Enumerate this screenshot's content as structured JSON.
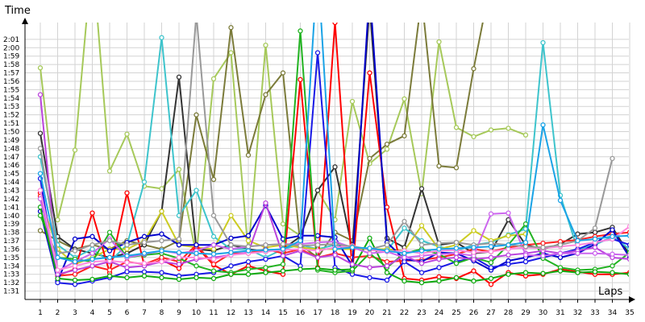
{
  "chart_data": {
    "type": "line",
    "xlabel": "Laps",
    "ylabel": "Time",
    "x": [
      1,
      2,
      3,
      4,
      5,
      6,
      7,
      8,
      9,
      10,
      11,
      12,
      13,
      14,
      15,
      16,
      17,
      18,
      19,
      20,
      21,
      22,
      23,
      24,
      25,
      26,
      27,
      28,
      29,
      30,
      31,
      32,
      33,
      34,
      35
    ],
    "xlim": [
      1,
      35
    ],
    "ylim": [
      90,
      123
    ],
    "y_tick_values": [
      91,
      92,
      93,
      94,
      95,
      96,
      97,
      98,
      99,
      100,
      101,
      102,
      103,
      104,
      105,
      106,
      107,
      108,
      109,
      110,
      111,
      112,
      113,
      114,
      115,
      116,
      117,
      118,
      119,
      120,
      121
    ],
    "y_tick_labels": [
      "1:31",
      "1:32",
      "1:33",
      "1:34",
      "1:35",
      "1:36",
      "1:37",
      "1:38",
      "1:39",
      "1:40",
      "1:41",
      "1:42",
      "1:43",
      "1:44",
      "1:45",
      "1:46",
      "1:47",
      "1:48",
      "1:49",
      "1:50",
      "1:51",
      "1:52",
      "1:53",
      "1:54",
      "1:55",
      "1:56",
      "1:57",
      "1:58",
      "1:59",
      "2:00",
      "2:01"
    ],
    "x_tick_labels": [
      "1",
      "2",
      "3",
      "4",
      "5",
      "6",
      "7",
      "8",
      "9",
      "10",
      "11",
      "12",
      "13",
      "14",
      "15",
      "16",
      "17",
      "18",
      "19",
      "20",
      "21",
      "22",
      "23",
      "24",
      "25",
      "26",
      "27",
      "28",
      "29",
      "30",
      "31",
      "32",
      "33",
      "34",
      "35"
    ],
    "grid": true,
    "legend": "none",
    "series": [
      {
        "color": "#a6c95a",
        "values": [
          117.6,
          99.5,
          107.8,
          131,
          105.3,
          109.7,
          103.5,
          103.2,
          105.5,
          95.3,
          116.3,
          119.4,
          95.6,
          120.3,
          99,
          97.6,
          103,
          99.5,
          113.6,
          106.2,
          107.9,
          113.9,
          102.6,
          120.7,
          110.5,
          109.4,
          110.2,
          110.4,
          109.6,
          null,
          null,
          null,
          null,
          null,
          null
        ]
      },
      {
        "color": "#7b7b3a",
        "values": [
          98.2,
          97,
          96,
          96.5,
          96,
          97,
          96.5,
          96,
          97,
          112,
          104.3,
          122.4,
          107.2,
          114.4,
          117,
          96.5,
          95,
          98,
          97,
          106.8,
          108.5,
          109.5,
          126,
          105.9,
          105.7,
          117.5,
          128,
          null,
          null,
          null,
          null,
          null,
          null,
          null,
          null
        ]
      },
      {
        "color": "#333333",
        "values": [
          109.8,
          97.5,
          96,
          95.5,
          95,
          95.5,
          96.5,
          100.5,
          116.5,
          96,
          95.8,
          96.5,
          96,
          95.7,
          96,
          97.5,
          103,
          105.8,
          96,
          125,
          97.3,
          96.2,
          103.2,
          96.5,
          96.8,
          95.5,
          95.7,
          99.5,
          96.5,
          96,
          96.6,
          97.8,
          98,
          98.6,
          95.3
        ]
      },
      {
        "color": "#3ec4cc",
        "values": [
          107,
          96.5,
          95,
          96,
          94.5,
          96.5,
          104,
          121.2,
          100,
          103,
          97.5,
          96,
          96,
          95,
          96,
          96.5,
          96,
          96.5,
          96,
          96,
          95.8,
          98.5,
          97,
          96.3,
          95.8,
          96.5,
          96.8,
          97.7,
          98.4,
          120.6,
          102.4,
          95.9,
          96.5,
          97.5,
          96
        ]
      },
      {
        "color": "#cccc22",
        "values": [
          102,
          96,
          94.2,
          95,
          96,
          96,
          97,
          100.5,
          96.5,
          96.2,
          96,
          100,
          97,
          96.2,
          96.5,
          96.2,
          96,
          96,
          96,
          96,
          96,
          95.8,
          98.8,
          96,
          96.5,
          98.2,
          97,
          97.6,
          97.8,
          null,
          null,
          null,
          null,
          null,
          null
        ]
      },
      {
        "color": "#ff0000",
        "values": [
          102.7,
          92.9,
          93.6,
          100.3,
          93.2,
          102.7,
          94,
          94.7,
          93.7,
          96.3,
          94.1,
          93,
          94,
          93.4,
          93,
          116.2,
          93.8,
          123,
          93.3,
          117,
          101,
          92.5,
          92.3,
          92.7,
          92.5,
          93.4,
          91.8,
          93.2,
          92.8,
          93,
          93.6,
          93.3,
          93,
          93,
          93.2
        ]
      },
      {
        "color": "#ff2222",
        "values": [
          102.3,
          92.8,
          93,
          94,
          93.5,
          94.5,
          94.2,
          95,
          94.5,
          96.5,
          94.2,
          95.5,
          95.5,
          96,
          95.5,
          96,
          95,
          95.5,
          95,
          95.2,
          94.5,
          94.6,
          94.7,
          95,
          95.4,
          96,
          95.7,
          96.2,
          96.5,
          96.7,
          96.9,
          97.1,
          97.5,
          97.8,
          98
        ]
      },
      {
        "color": "#0000cc",
        "values": [
          100.5,
          92.2,
          97.2,
          97.5,
          95.8,
          96.8,
          97.5,
          97.8,
          96.5,
          96.5,
          96.5,
          97.3,
          97.6,
          101.2,
          97.2,
          97.6,
          97.6,
          97.4,
          94,
          127,
          96.8,
          94.8,
          94.5,
          95.6,
          95.5,
          94.6,
          93.5,
          94.6,
          95,
          95.5,
          95,
          95.5,
          96.6,
          98.3,
          95
        ]
      },
      {
        "color": "#1a1ae6",
        "values": [
          104.4,
          92,
          91.8,
          92.2,
          92.6,
          93.3,
          93.3,
          93.2,
          92.8,
          93,
          93.2,
          94,
          94.5,
          94.8,
          95.2,
          94,
          119.4,
          93.8,
          93,
          92.6,
          92.3,
          94.5,
          93.2,
          93.8,
          94.5,
          95,
          93.8,
          94.2,
          94.5,
          95,
          95.5,
          96,
          96.8,
          97.2,
          96.5
        ]
      },
      {
        "color": "#22b322",
        "values": [
          100,
          95,
          94.8,
          94.5,
          98,
          95,
          95.3,
          95.5,
          94.9,
          94,
          93.4,
          93.2,
          93.6,
          93.8,
          94.2,
          122,
          93.5,
          93.2,
          93.4,
          95.5,
          93.8,
          95.5,
          96,
          95.4,
          94.3,
          95,
          94.4,
          96.5,
          99,
          94.9,
          93.8,
          93.5,
          93.6,
          94,
          95.6
        ]
      },
      {
        "color": "#11aa11",
        "values": [
          101,
          92.5,
          92.3,
          92.4,
          92.8,
          92.6,
          92.8,
          92.6,
          92.4,
          92.6,
          92.5,
          93,
          93,
          93.2,
          93.4,
          93.6,
          93.7,
          93.5,
          93.6,
          97.3,
          93.2,
          92.2,
          92,
          92.2,
          92.6,
          92.2,
          92.5,
          93,
          93.2,
          93.1,
          93.4,
          93.2,
          93.3,
          93.2,
          93
        ]
      },
      {
        "color": "#bb44dd",
        "values": [
          114.4,
          93,
          93.5,
          94,
          94.5,
          93.8,
          94,
          94.5,
          94.2,
          94.8,
          95,
          95.3,
          95.6,
          101.5,
          95.2,
          95.8,
          95,
          95.3,
          94.2,
          93.8,
          94,
          95.2,
          94.3,
          94.8,
          95,
          94.8,
          95,
          95.3,
          95.5,
          95.8,
          95.5,
          95.8,
          96.2,
          95,
          94.8
        ]
      },
      {
        "color": "#cc66ee",
        "values": [
          102,
          93.4,
          94.5,
          95.5,
          97.2,
          95,
          95.4,
          95.8,
          95.5,
          95.8,
          96.5,
          96,
          96.3,
          96.5,
          96.6,
          96.6,
          96.8,
          96.9,
          96.2,
          95.5,
          95.7,
          95,
          95.2,
          95.4,
          95.5,
          95.2,
          100.2,
          100.3,
          95.3,
          95.2,
          95.5,
          95.5,
          95.5,
          95.4,
          95.3
        ]
      },
      {
        "color": "#ff88dd",
        "values": [
          103,
          93.5,
          94,
          94.5,
          94.6,
          94.4,
          94.3,
          94.5,
          95,
          95,
          94.8,
          95.3,
          95.5,
          95.7,
          95.9,
          96,
          95.8,
          96.2,
          96.4,
          95.9,
          95.7,
          95.8,
          95.5,
          95.8,
          95.9,
          95.6,
          95.7,
          96,
          96.2,
          96.1,
          96.3,
          96.5,
          96.8,
          97.2,
          98.7
        ]
      },
      {
        "color": "#999999",
        "values": [
          108,
          95.5,
          95.8,
          96.5,
          97,
          96.5,
          96.8,
          97,
          97.2,
          124,
          100,
          96.5,
          96.3,
          96.5,
          96.6,
          96.4,
          96.5,
          96.6,
          96.3,
          96,
          96.5,
          99.3,
          96.5,
          96.7,
          96.8,
          96.5,
          96.7,
          96.5,
          96.3,
          96.2,
          96.5,
          97,
          98.5,
          106.8,
          null
        ]
      },
      {
        "color": "#1aa3e6",
        "values": [
          105,
          95,
          94.5,
          94.8,
          95,
          95.2,
          95.5,
          95.8,
          95.6,
          95.5,
          95.4,
          95.6,
          95.8,
          95.9,
          96,
          97,
          130,
          96,
          96.2,
          96.1,
          95.8,
          95.5,
          95.8,
          96,
          96.1,
          96.2,
          96.3,
          96.5,
          96.8,
          110.8,
          101.8,
          97,
          97.2,
          97.5,
          97.6
        ]
      }
    ]
  }
}
